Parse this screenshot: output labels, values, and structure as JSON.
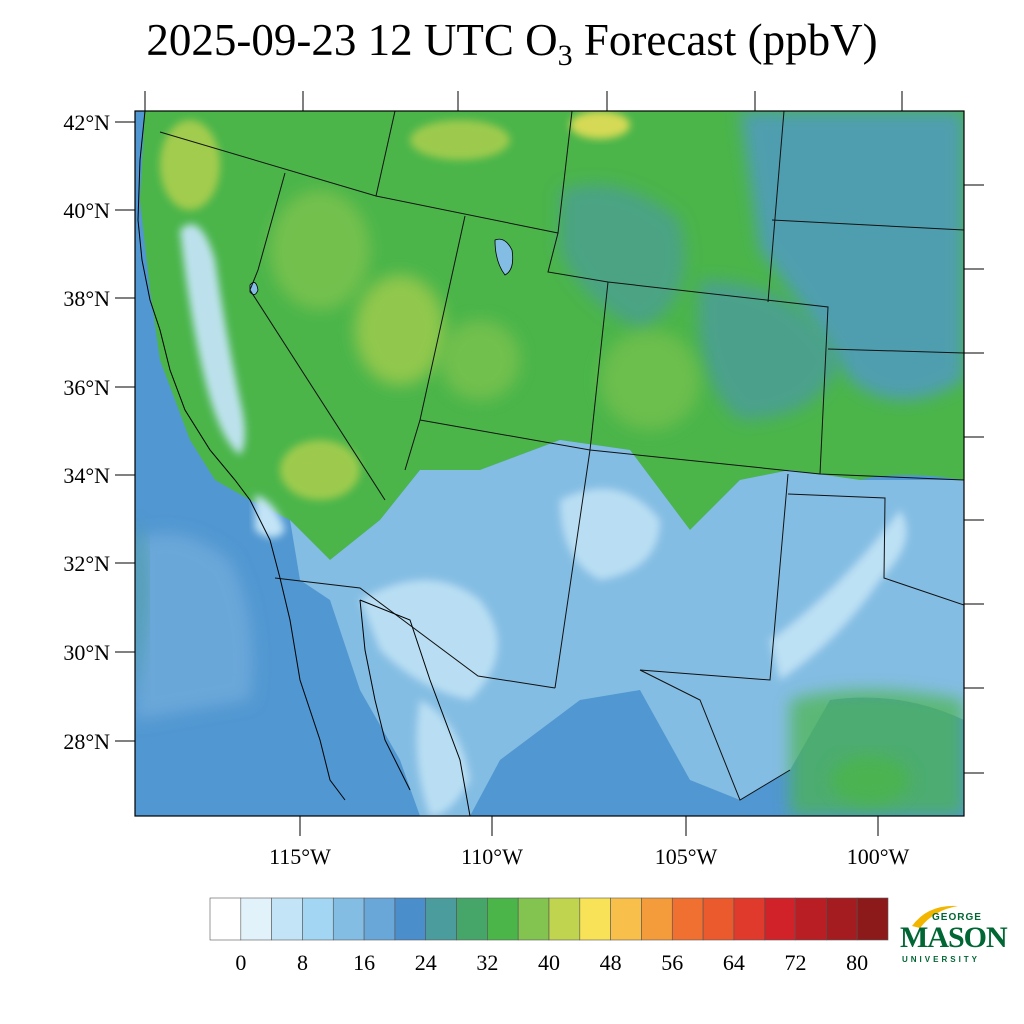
{
  "title": {
    "pre": "2025-09-23 12 UTC O",
    "sub": "3",
    "post": " Forecast (ppbV)"
  },
  "lat_labels": [
    "42°N",
    "40°N",
    "38°N",
    "36°N",
    "34°N",
    "32°N",
    "30°N",
    "28°N"
  ],
  "lon_labels": [
    "115°W",
    "110°W",
    "105°W",
    "100°W"
  ],
  "colorbar": {
    "colors": [
      "#ffffff",
      "#e2f2fb",
      "#c3e4f6",
      "#a3d6f2",
      "#84bde3",
      "#6aa7d9",
      "#4a8ecb",
      "#4b9c9c",
      "#46a66a",
      "#4bb54a",
      "#82c44f",
      "#c0d44f",
      "#f8e358",
      "#f8c04a",
      "#f49b3c",
      "#ef7030",
      "#ea5a2c",
      "#df3a2b",
      "#d02228",
      "#b81e24",
      "#a41c20",
      "#8c1a1a"
    ],
    "labels": [
      "0",
      "8",
      "16",
      "24",
      "32",
      "40",
      "48",
      "56",
      "64",
      "72",
      "80"
    ]
  },
  "logo": {
    "top": "GEORGE",
    "middle": "MASON",
    "bottom": "UNIVERSITY",
    "brand_color": "#006633",
    "accent_color": "#f2b600"
  },
  "map_colors": {
    "ocean": "#5197d1",
    "ocean_light": "#6aa7d9",
    "land_green": "#4bb54a",
    "land_light_green": "#82c44f",
    "land_teal": "#4b9c9c",
    "desert_blue": "#84bde3",
    "desert_pale": "#c3e4f6",
    "high_yellow": "#c0d44f",
    "peak_yellow": "#f8e358"
  }
}
